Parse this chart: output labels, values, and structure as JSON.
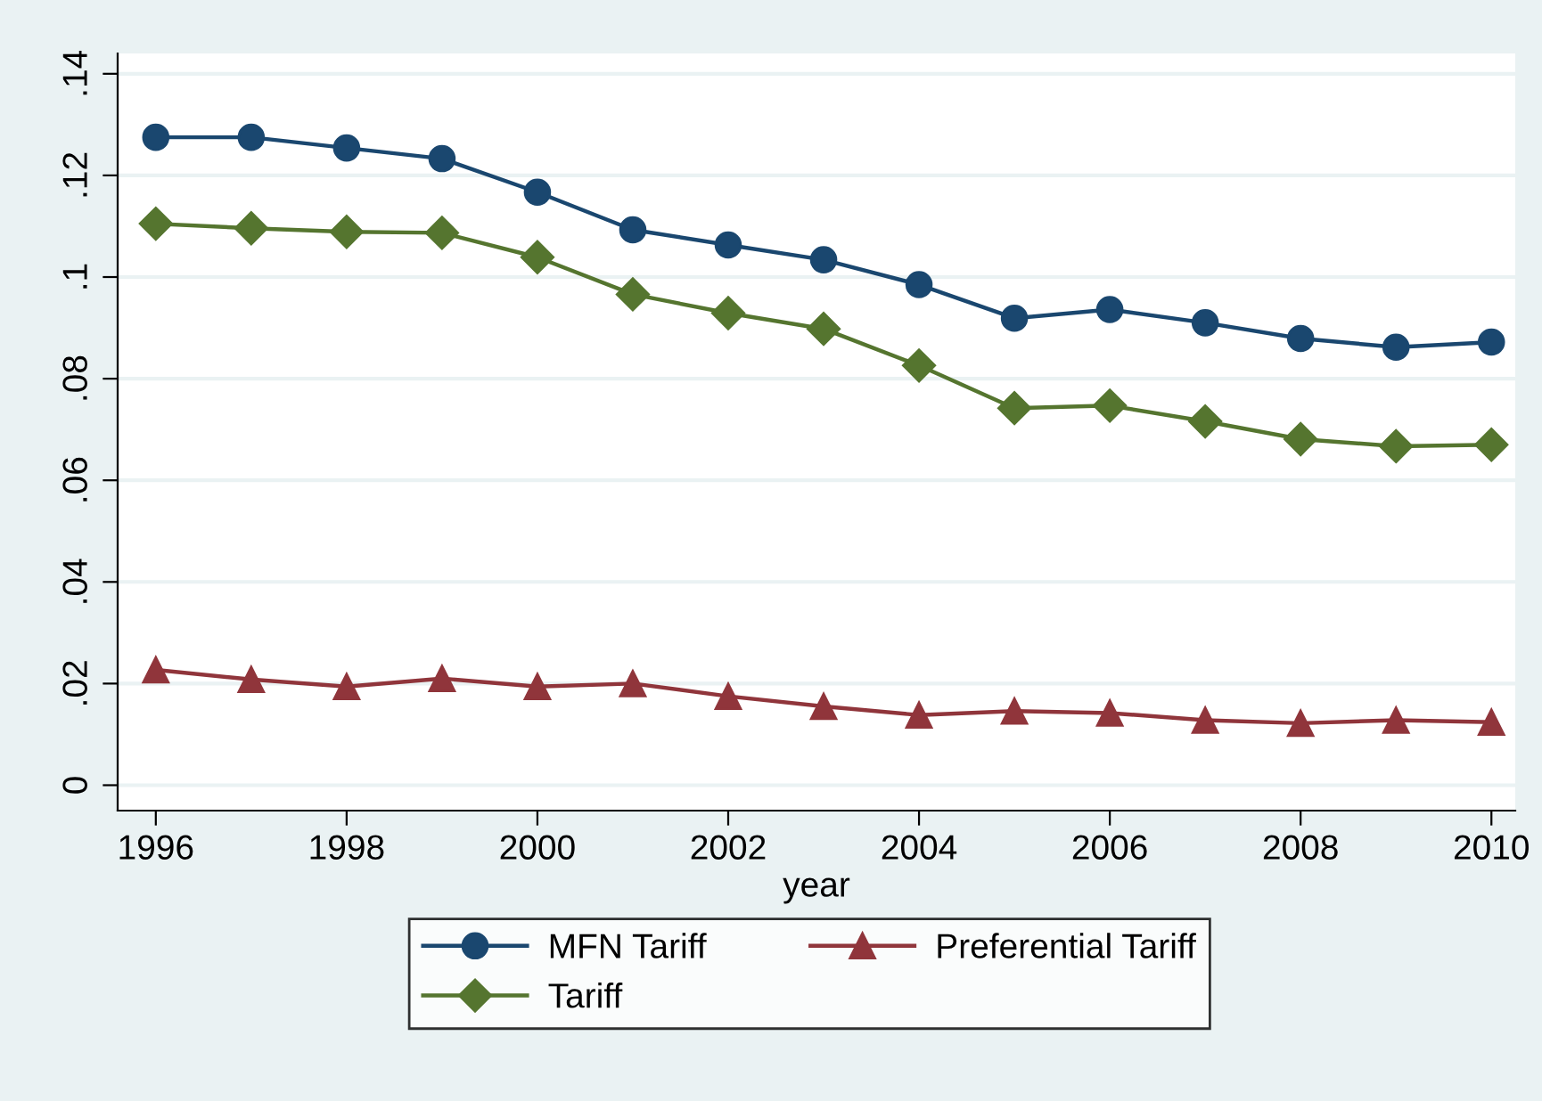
{
  "chart_data": {
    "type": "line",
    "xlabel": "year",
    "x": [
      1996,
      1997,
      1998,
      1999,
      2000,
      2001,
      2002,
      2003,
      2004,
      2005,
      2006,
      2007,
      2008,
      2009,
      2010
    ],
    "series": [
      {
        "name": "MFN Tariff",
        "color": "#1a476f",
        "marker": "circle",
        "values": [
          0.1275,
          0.1275,
          0.1254,
          0.1233,
          0.1167,
          0.1093,
          0.1063,
          0.1034,
          0.0985,
          0.0919,
          0.0936,
          0.091,
          0.0879,
          0.0862,
          0.0872
        ]
      },
      {
        "name": "Preferential Tariff",
        "color": "#90353b",
        "marker": "triangle",
        "values": [
          0.0227,
          0.0208,
          0.0194,
          0.021,
          0.0194,
          0.02,
          0.0175,
          0.0155,
          0.0138,
          0.0146,
          0.0142,
          0.0128,
          0.0122,
          0.0128,
          0.0124
        ]
      },
      {
        "name": "Tariff",
        "color": "#55752f",
        "marker": "diamond",
        "values": [
          0.1105,
          0.1096,
          0.1089,
          0.1087,
          0.1039,
          0.0966,
          0.0929,
          0.0898,
          0.0826,
          0.0742,
          0.0747,
          0.0716,
          0.0681,
          0.0667,
          0.067
        ]
      }
    ],
    "xlim": [
      1995.6,
      2010.25
    ],
    "xticks": [
      1996,
      1998,
      2000,
      2002,
      2004,
      2006,
      2008,
      2010
    ],
    "ylim": [
      -0.005,
      0.144
    ],
    "yticks": [
      0,
      {
        "value": 0.02,
        "label": ".02"
      },
      {
        "value": 0.04,
        "label": ".04"
      },
      {
        "value": 0.06,
        "label": ".06"
      },
      {
        "value": 0.08,
        "label": ".08"
      },
      {
        "value": 0.1,
        "label": ".1"
      },
      {
        "value": 0.12,
        "label": ".12"
      },
      {
        "value": 0.14,
        "label": ".14"
      }
    ],
    "grid": "y",
    "legend": "bottom",
    "line_style": "solid"
  }
}
